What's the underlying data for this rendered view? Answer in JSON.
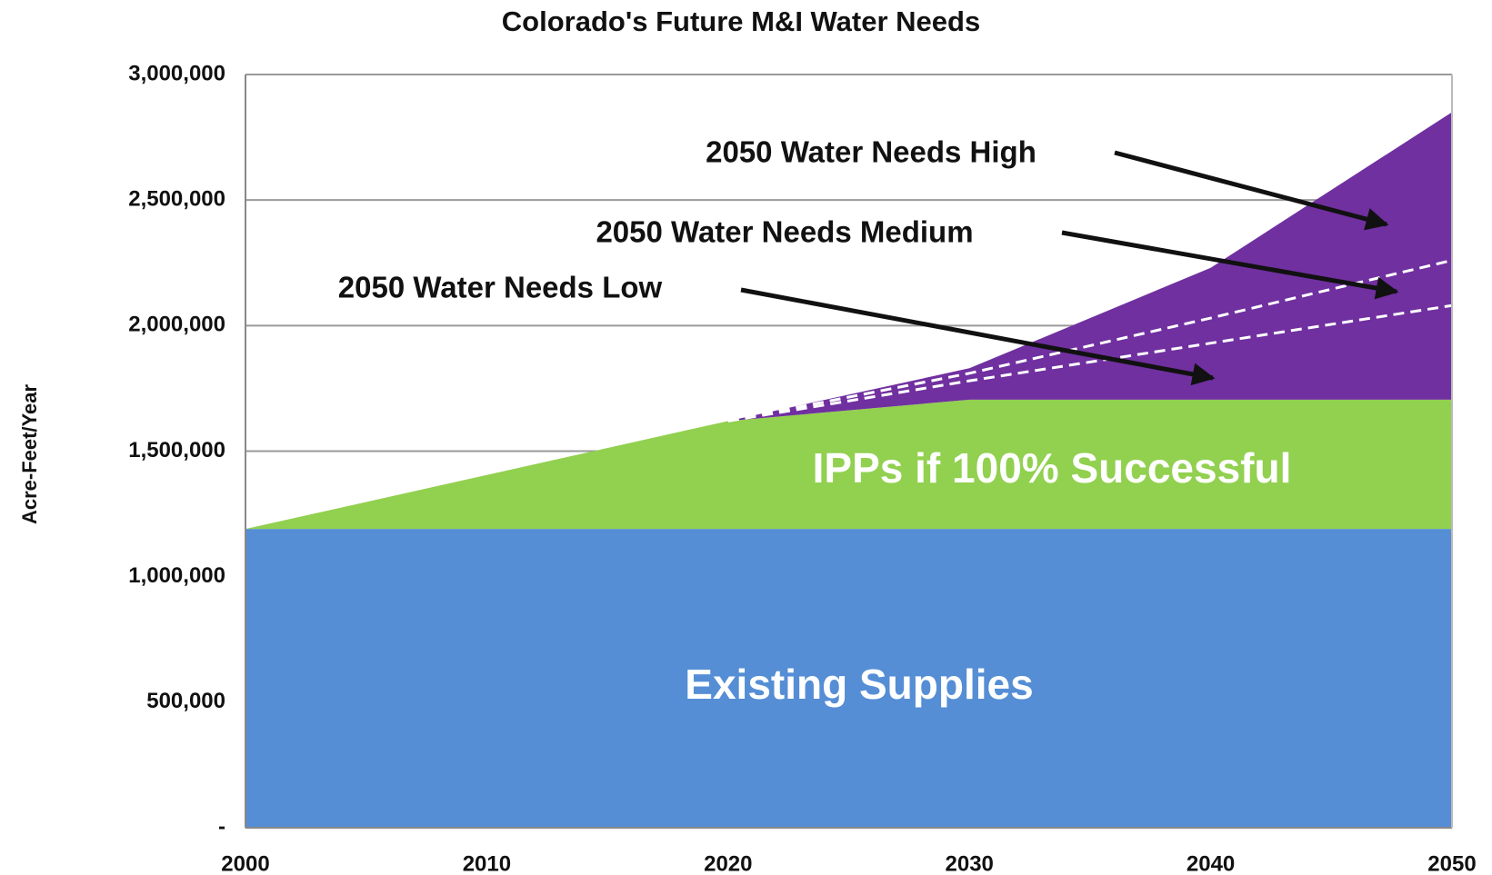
{
  "chart_data": {
    "type": "area",
    "title": "Colorado's Future M&I Water Needs",
    "y_label": "Acre-Feet/Year",
    "x": [
      2000,
      2020,
      2030,
      2040,
      2050
    ],
    "series": [
      {
        "name": "Existing Supplies",
        "color": "#558ed5",
        "kind": "area",
        "values": [
          1190000,
          1190000,
          1190000,
          1190000,
          1190000
        ]
      },
      {
        "name": "IPPs if 100% Successful",
        "color": "#92d050",
        "kind": "area",
        "values": [
          0,
          430000,
          515000,
          515000,
          515000
        ]
      },
      {
        "name": "2050 Water Needs High",
        "color": "#7030a0",
        "kind": "area",
        "values": [
          0,
          0,
          125000,
          525000,
          1145000
        ]
      },
      {
        "name": "2050 Water Needs Medium",
        "color": "#ffffff",
        "kind": "line",
        "dashed": true,
        "values": [
          null,
          1620000,
          1810000,
          2030000,
          2260000
        ]
      },
      {
        "name": "2050 Water Needs Low",
        "color": "#ffffff",
        "kind": "line",
        "dashed": true,
        "values": [
          null,
          1620000,
          1780000,
          1930000,
          2080000
        ]
      }
    ],
    "xlim": [
      2000,
      2050
    ],
    "xticks": [
      2000,
      2010,
      2020,
      2030,
      2040,
      2050
    ],
    "ylim": [
      0,
      3000000
    ],
    "yticks": [
      {
        "value": 0,
        "label": "-"
      },
      {
        "value": 500000,
        "label": "500,000"
      },
      {
        "value": 1000000,
        "label": "1,000,000"
      },
      {
        "value": 1500000,
        "label": "1,500,000"
      },
      {
        "value": 2000000,
        "label": "2,000,000"
      },
      {
        "value": 2500000,
        "label": "2,500,000"
      },
      {
        "value": 3000000,
        "label": "3,000,000"
      }
    ],
    "grid": true
  }
}
